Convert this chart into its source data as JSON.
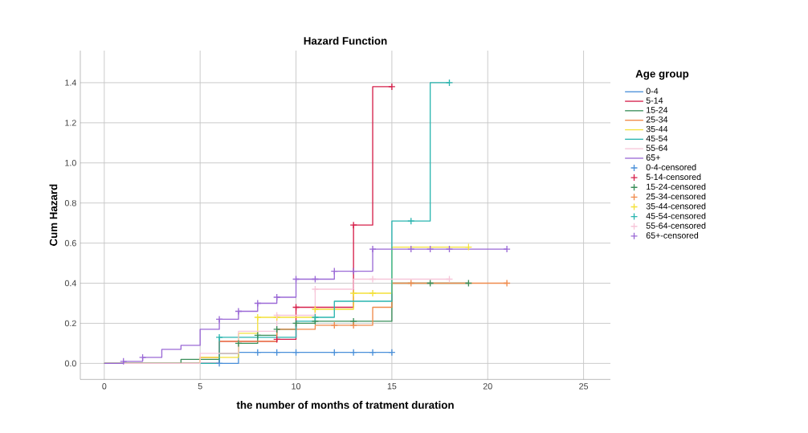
{
  "chart_data": {
    "type": "step",
    "title": "Hazard Function",
    "xlabel": "the number of months of tratment duration",
    "ylabel": "Cum Hazard",
    "legend_title": "Age group",
    "xlim": [
      -1.25,
      26.4
    ],
    "ylim": [
      -0.08,
      1.56
    ],
    "xticks": [
      0,
      5,
      10,
      15,
      20,
      25
    ],
    "yticks": [
      {
        "value": 0,
        "label": "0.0"
      },
      {
        "value": 0.2,
        "label": "0.2"
      },
      {
        "value": 0.4,
        "label": "0.4"
      },
      {
        "value": 0.6,
        "label": "0.6"
      },
      {
        "value": 0.8,
        "label": "0.8"
      },
      {
        "value": 1.0,
        "label": "1.0"
      },
      {
        "value": 1.2,
        "label": "1.2"
      },
      {
        "value": 1.4,
        "label": "1.4"
      }
    ],
    "grid": true,
    "legend": "right",
    "series": [
      {
        "name": "0-4",
        "color": "#4a90d9",
        "x": [
          0,
          7,
          15
        ],
        "values": [
          0,
          0.055,
          0.055
        ]
      },
      {
        "name": "5-14",
        "color": "#d6204b",
        "x": [
          0,
          6,
          9,
          10,
          13,
          14,
          15
        ],
        "values": [
          0,
          0.11,
          0.12,
          0.28,
          0.69,
          1.38,
          1.38
        ]
      },
      {
        "name": "15-24",
        "color": "#3a8f5a",
        "x": [
          0,
          4,
          6,
          7,
          8,
          9,
          10,
          11,
          15,
          19
        ],
        "values": [
          0,
          0.02,
          0.05,
          0.1,
          0.14,
          0.17,
          0.2,
          0.21,
          0.4,
          0.4
        ]
      },
      {
        "name": "25-34",
        "color": "#f08a4b",
        "x": [
          0,
          5,
          6,
          9,
          11,
          14,
          15,
          21
        ],
        "values": [
          0,
          0.03,
          0.11,
          0.17,
          0.19,
          0.28,
          0.4,
          0.4
        ]
      },
      {
        "name": "35-44",
        "color": "#f4e13a",
        "x": [
          0,
          5,
          7,
          8,
          11,
          13,
          15,
          19
        ],
        "values": [
          0,
          0.03,
          0.15,
          0.23,
          0.27,
          0.35,
          0.58,
          0.58
        ]
      },
      {
        "name": "45-54",
        "color": "#2ab5b0",
        "x": [
          0,
          6,
          10,
          11,
          12,
          15,
          17,
          18
        ],
        "values": [
          0,
          0.13,
          0.21,
          0.23,
          0.31,
          0.71,
          1.4,
          1.4
        ]
      },
      {
        "name": "55-64",
        "color": "#f7c6d9",
        "x": [
          0,
          5,
          7,
          9,
          11,
          13,
          18
        ],
        "values": [
          0,
          0.05,
          0.16,
          0.24,
          0.37,
          0.42,
          0.42
        ]
      },
      {
        "name": "65+",
        "color": "#9b6ad6",
        "x": [
          0,
          1,
          2,
          3,
          4,
          5,
          6,
          7,
          8,
          9,
          10,
          12,
          14,
          21
        ],
        "values": [
          0,
          0.01,
          0.03,
          0.07,
          0.09,
          0.17,
          0.22,
          0.26,
          0.3,
          0.33,
          0.42,
          0.46,
          0.57,
          0.57
        ]
      },
      {
        "name": "0-4-censored",
        "type": "scatter",
        "marker": "cross",
        "color": "#4a90d9",
        "x": [
          6,
          8,
          9,
          10,
          12,
          13,
          14,
          15
        ],
        "values": [
          0,
          0.055,
          0.055,
          0.055,
          0.055,
          0.055,
          0.055,
          0.055
        ]
      },
      {
        "name": "5-14-censored",
        "type": "scatter",
        "marker": "cross",
        "color": "#d6204b",
        "x": [
          9,
          10,
          13,
          15
        ],
        "values": [
          0.12,
          0.28,
          0.69,
          1.38
        ]
      },
      {
        "name": "15-24-censored",
        "type": "scatter",
        "marker": "cross",
        "color": "#3a8f5a",
        "x": [
          7,
          8,
          9,
          10,
          11,
          13,
          17,
          19
        ],
        "values": [
          0.1,
          0.14,
          0.17,
          0.2,
          0.21,
          0.21,
          0.4,
          0.4
        ]
      },
      {
        "name": "25-34-censored",
        "type": "scatter",
        "marker": "cross",
        "color": "#f08a4b",
        "x": [
          12,
          13,
          16,
          21
        ],
        "values": [
          0.19,
          0.19,
          0.4,
          0.4
        ]
      },
      {
        "name": "35-44-censored",
        "type": "scatter",
        "marker": "cross",
        "color": "#f4e13a",
        "x": [
          8,
          9,
          11,
          13,
          14,
          19
        ],
        "values": [
          0.23,
          0.23,
          0.27,
          0.35,
          0.35,
          0.58
        ]
      },
      {
        "name": "45-54-censored",
        "type": "scatter",
        "marker": "cross",
        "color": "#2ab5b0",
        "x": [
          6,
          11,
          16,
          18
        ],
        "values": [
          0.13,
          0.23,
          0.71,
          1.4
        ]
      },
      {
        "name": "55-64-censored",
        "type": "scatter",
        "marker": "cross",
        "color": "#f7c6d9",
        "x": [
          9,
          11,
          14,
          18
        ],
        "values": [
          0.24,
          0.37,
          0.42,
          0.42
        ]
      },
      {
        "name": "65+-censored",
        "type": "scatter",
        "marker": "cross",
        "color": "#9b6ad6",
        "x": [
          1,
          2,
          6,
          7,
          8,
          9,
          10,
          11,
          12,
          13,
          14,
          16,
          17,
          18,
          21
        ],
        "values": [
          0.01,
          0.03,
          0.22,
          0.26,
          0.3,
          0.33,
          0.42,
          0.42,
          0.46,
          0.46,
          0.57,
          0.57,
          0.57,
          0.57,
          0.57
        ]
      }
    ]
  }
}
